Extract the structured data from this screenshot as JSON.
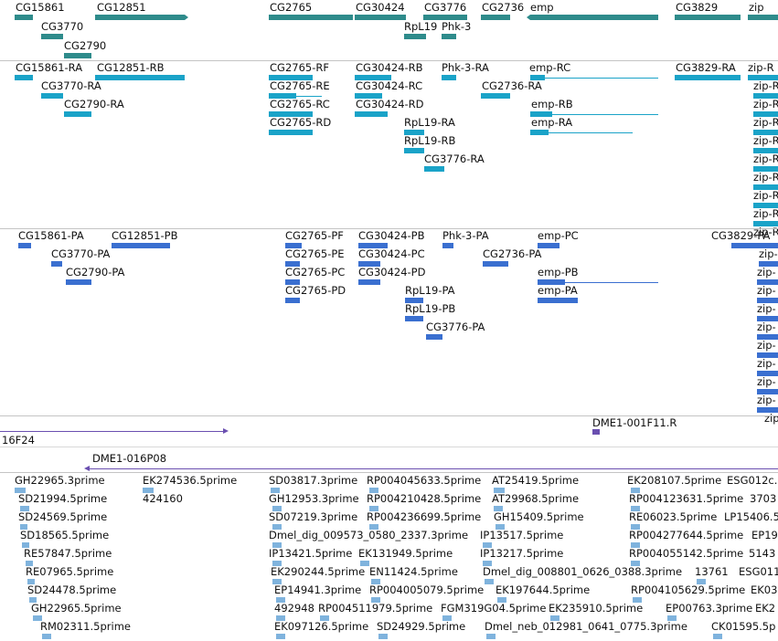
{
  "colors": {
    "gene": "#2e8b8b",
    "transcript": "#1aa3c8",
    "protein": "#3a6fd0",
    "clone": "#6a4fb0",
    "est": "#7fb3dd"
  },
  "gene_track": {
    "labels": [
      "CG15861",
      "CG12851",
      "CG2765",
      "CG30424",
      "CG3776",
      "CG2736",
      "emp",
      "CG3829",
      "zip",
      "CG3770",
      "RpL19",
      "Phk-3",
      "CG2790"
    ]
  },
  "transcript_track": {
    "labels": [
      "CG15861-RA",
      "CG12851-RB",
      "CG2765-RF",
      "CG30424-RB",
      "Phk-3-RA",
      "emp-RC",
      "CG3829-RA",
      "zip-R",
      "CG3770-RA",
      "CG2765-RE",
      "CG30424-RC",
      "CG2736-RA",
      "CG2790-RA",
      "CG2765-RC",
      "CG30424-RD",
      "emp-RB",
      "CG2765-RD",
      "RpL19-RA",
      "emp-RA",
      "RpL19-RB",
      "CG3776-RA",
      "zip-R",
      "zip-R",
      "zip-R",
      "zip-R",
      "zip-R",
      "zip-R",
      "zip-R",
      "zip-R",
      "zip-R"
    ]
  },
  "protein_track": {
    "labels": [
      "CG15861-PA",
      "CG12851-PB",
      "CG2765-PF",
      "CG30424-PB",
      "Phk-3-PA",
      "emp-PC",
      "CG3829-PA",
      "CG3770-PA",
      "CG2765-PE",
      "CG30424-PC",
      "CG2736-PA",
      "CG2790-PA",
      "CG2765-PC",
      "CG30424-PD",
      "emp-PB",
      "CG2765-PD",
      "RpL19-PA",
      "emp-PA",
      "RpL19-PB",
      "CG3776-PA",
      "zip-",
      "zip-",
      "zip-",
      "zip-",
      "zip-",
      "zip-",
      "zip-",
      "zip-",
      "zip-",
      "zip-"
    ]
  },
  "clone_track": {
    "labels": [
      "16F24",
      "DME1-001F11.R",
      "DME1-016P08"
    ]
  },
  "est_track": {
    "labels": [
      "GH22965.3prime",
      "EK274536.5prime",
      "SD03817.3prime",
      "RP004045633.5prime",
      "AT25419.5prime",
      "EK208107.5prime",
      "ESG012c.",
      "SD21994.5prime",
      "424160",
      "GH12953.3prime",
      "RP004210428.5prime",
      "AT29968.5prime",
      "RP004123631.5prime",
      "3703",
      "SD24569.5prime",
      "SD07219.3prime",
      "RP004236699.5prime",
      "GH15409.5prime",
      "RE06023.5prime",
      "LP15406.5",
      "SD18565.5prime",
      "Dmel_dig_009573_0580_2337.3prime",
      "IP13517.5prime",
      "RP004277644.5prime",
      "EP19",
      "RE57847.5prime",
      "IP13421.5prime",
      "EK131949.5prime",
      "IP13217.5prime",
      "RP004055142.5prime",
      "5143",
      "RE07965.5prime",
      "EK290244.5prime",
      "EN11424.5prime",
      "Dmel_dig_008801_0626_0388.3prime",
      "13761",
      "ESG011",
      "SD24478.5prime",
      "EP14941.3prime",
      "RP004005079.5prime",
      "EK197644.5prime",
      "RP004105629.5prime",
      "EK03",
      "GH22965.5prime",
      "492948",
      "RP004511979.5prime",
      "FGM319G04.5prime",
      "EK235910.5prime",
      "EP00763.3prime",
      "EK2",
      "RM02311.5prime",
      "EK097126.5prime",
      "SD24929.5prime",
      "Dmel_neb_012981_0641_0775.3prime",
      "CK01595.5p"
    ]
  }
}
